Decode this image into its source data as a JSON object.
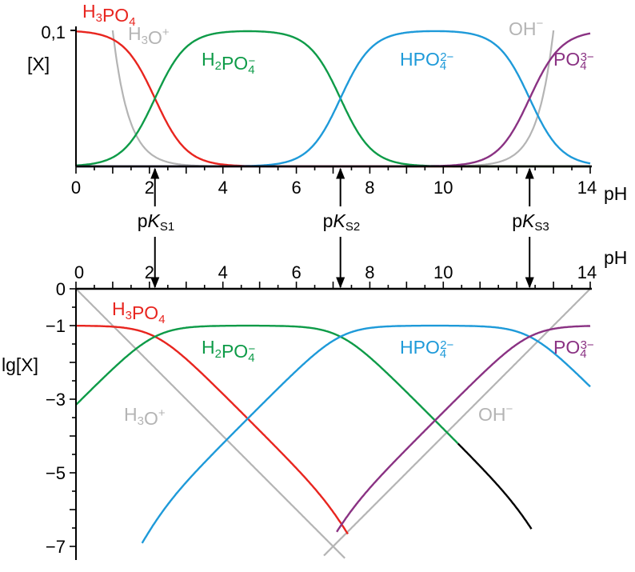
{
  "chart_data": [
    {
      "type": "line",
      "xlabel": "pH",
      "ylabel": "[X]",
      "xlim": [
        0,
        14
      ],
      "ylim": [
        0,
        0.1
      ],
      "xticks": [
        "0",
        "2",
        "4",
        "6",
        "8",
        "10",
        "14"
      ],
      "yticks": [
        "0,1"
      ],
      "total_concentration": 0.1,
      "pKa": [
        2.15,
        7.2,
        12.35
      ],
      "pKw": 14,
      "species": [
        {
          "id": "h3po4",
          "name": "H3PO4",
          "parts": [
            [
              "H",
              ""
            ],
            [
              "3",
              "sub"
            ],
            [
              "PO",
              ""
            ],
            [
              "4",
              "sub"
            ]
          ],
          "color": "#e8251f"
        },
        {
          "id": "h2po4",
          "name": "H2PO4−",
          "parts": [
            [
              "H",
              ""
            ],
            [
              "2",
              "sub"
            ],
            [
              "PO",
              ""
            ],
            [
              "4",
              "sub"
            ],
            [
              "−",
              "sup"
            ]
          ],
          "color": "#0e9b48"
        },
        {
          "id": "hpo4",
          "name": "HPO42−",
          "parts": [
            [
              "HPO",
              ""
            ],
            [
              "4",
              "sub"
            ],
            [
              "2−",
              "sup"
            ]
          ],
          "color": "#1e9ad9"
        },
        {
          "id": "po4",
          "name": "PO43−",
          "parts": [
            [
              "PO",
              ""
            ],
            [
              "4",
              "sub"
            ],
            [
              "3−",
              "sup"
            ]
          ],
          "color": "#8a3283"
        },
        {
          "id": "h3o",
          "name": "H3O+",
          "parts": [
            [
              "H",
              ""
            ],
            [
              "3",
              "sub"
            ],
            [
              "O",
              ""
            ],
            [
              "+",
              "sup"
            ]
          ],
          "color": "#b4b4b4"
        },
        {
          "id": "oh",
          "name": "OH−",
          "parts": [
            [
              "OH",
              ""
            ],
            [
              "−",
              "sup"
            ]
          ],
          "color": "#b4b4b4"
        }
      ]
    },
    {
      "type": "line",
      "xlabel": "pH",
      "ylabel": "lg[X]",
      "xlim": [
        0,
        14
      ],
      "ylim": [
        -7,
        0
      ],
      "xticks": [
        "0",
        "2",
        "4",
        "6",
        "8",
        "10",
        "14"
      ],
      "yticks": [
        "0",
        "−1",
        "−3",
        "−5",
        "−7"
      ]
    }
  ],
  "pk_labels": [
    {
      "p": "p",
      "k": "K",
      "s": "S1"
    },
    {
      "p": "p",
      "k": "K",
      "s": "S2"
    },
    {
      "p": "p",
      "k": "K",
      "s": "S3"
    }
  ],
  "colors": {
    "axis": "#000000",
    "activity_black": "#000000"
  }
}
